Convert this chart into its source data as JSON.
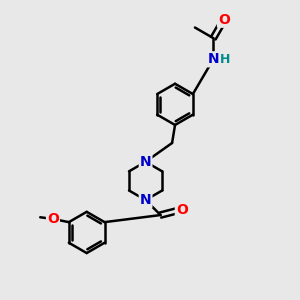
{
  "background_color": "#e8e8e8",
  "bond_color": "#000000",
  "bond_width": 1.8,
  "atom_colors": {
    "O": "#ff0000",
    "N": "#0000cc",
    "H": "#008b8b",
    "C": "#000000"
  },
  "font_size_atom": 10,
  "figsize": [
    3.0,
    3.0
  ],
  "dpi": 100
}
